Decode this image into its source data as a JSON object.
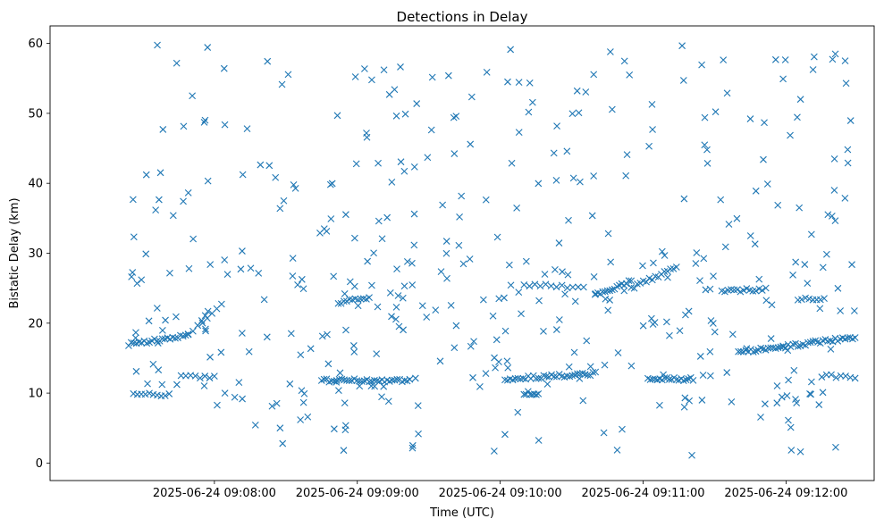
{
  "chart_data": {
    "type": "scatter",
    "title": "Detections in Delay",
    "xlabel": "Time (UTC)",
    "ylabel": "Bistatic Delay (km)",
    "x_format": "YYYY-MM-DD HH:MM:SS",
    "xlim": [
      "2025-06-24 09:06:51",
      "2025-06-24 09:12:37"
    ],
    "ylim": [
      -2.5,
      62.5
    ],
    "x_ticks": [
      "2025-06-24 09:08:00",
      "2025-06-24 09:09:00",
      "2025-06-24 09:10:00",
      "2025-06-24 09:11:00",
      "2025-06-24 09:12:00"
    ],
    "y_ticks": [
      0,
      10,
      20,
      30,
      40,
      50,
      60
    ],
    "marker": "x",
    "color": "#1f77b4",
    "grid": false,
    "tracks": [
      {
        "start": "2025-06-24 09:07:24",
        "end": "2025-06-24 09:07:49",
        "y_start": 17.0,
        "y_end": 18.2,
        "count": 24
      },
      {
        "start": "2025-06-24 09:07:49",
        "end": "2025-06-24 09:08:03",
        "y_start": 18.4,
        "y_end": 22.5,
        "count": 8
      },
      {
        "start": "2025-06-24 09:07:26",
        "end": "2025-06-24 09:07:41",
        "y_start": 9.8,
        "y_end": 9.8,
        "count": 10
      },
      {
        "start": "2025-06-24 09:07:46",
        "end": "2025-06-24 09:08:00",
        "y_start": 12.3,
        "y_end": 12.3,
        "count": 8
      },
      {
        "start": "2025-06-24 09:08:45",
        "end": "2025-06-24 09:09:22",
        "y_start": 11.8,
        "y_end": 11.8,
        "count": 36
      },
      {
        "start": "2025-06-24 09:08:52",
        "end": "2025-06-24 09:09:05",
        "y_start": 23.0,
        "y_end": 23.6,
        "count": 12
      },
      {
        "start": "2025-06-24 09:10:02",
        "end": "2025-06-24 09:10:40",
        "y_start": 12.0,
        "y_end": 12.8,
        "count": 36
      },
      {
        "start": "2025-06-24 09:10:10",
        "end": "2025-06-24 09:10:16",
        "y_start": 10.0,
        "y_end": 10.0,
        "count": 8
      },
      {
        "start": "2025-06-24 09:10:10",
        "end": "2025-06-24 09:10:35",
        "y_start": 25.5,
        "y_end": 25.2,
        "count": 12
      },
      {
        "start": "2025-06-24 09:10:40",
        "end": "2025-06-24 09:10:55",
        "y_start": 24.0,
        "y_end": 26.0,
        "count": 16
      },
      {
        "start": "2025-06-24 09:10:55",
        "end": "2025-06-24 09:11:14",
        "y_start": 25.0,
        "y_end": 28.0,
        "count": 16
      },
      {
        "start": "2025-06-24 09:11:02",
        "end": "2025-06-24 09:11:21",
        "y_start": 12.0,
        "y_end": 12.0,
        "count": 20
      },
      {
        "start": "2025-06-24 09:11:33",
        "end": "2025-06-24 09:11:50",
        "y_start": 24.7,
        "y_end": 24.7,
        "count": 14
      },
      {
        "start": "2025-06-24 09:11:40",
        "end": "2025-06-24 09:12:29",
        "y_start": 15.8,
        "y_end": 18.0,
        "count": 48
      },
      {
        "start": "2025-06-24 09:12:05",
        "end": "2025-06-24 09:12:16",
        "y_start": 23.5,
        "y_end": 23.6,
        "count": 8
      },
      {
        "start": "2025-06-24 09:12:15",
        "end": "2025-06-24 09:12:29",
        "y_start": 12.5,
        "y_end": 12.3,
        "count": 8
      }
    ],
    "scatter_noise": {
      "start": "2025-06-24 09:07:24",
      "end": "2025-06-24 09:12:29",
      "y_range": [
        0.5,
        60
      ],
      "count": 420
    }
  }
}
